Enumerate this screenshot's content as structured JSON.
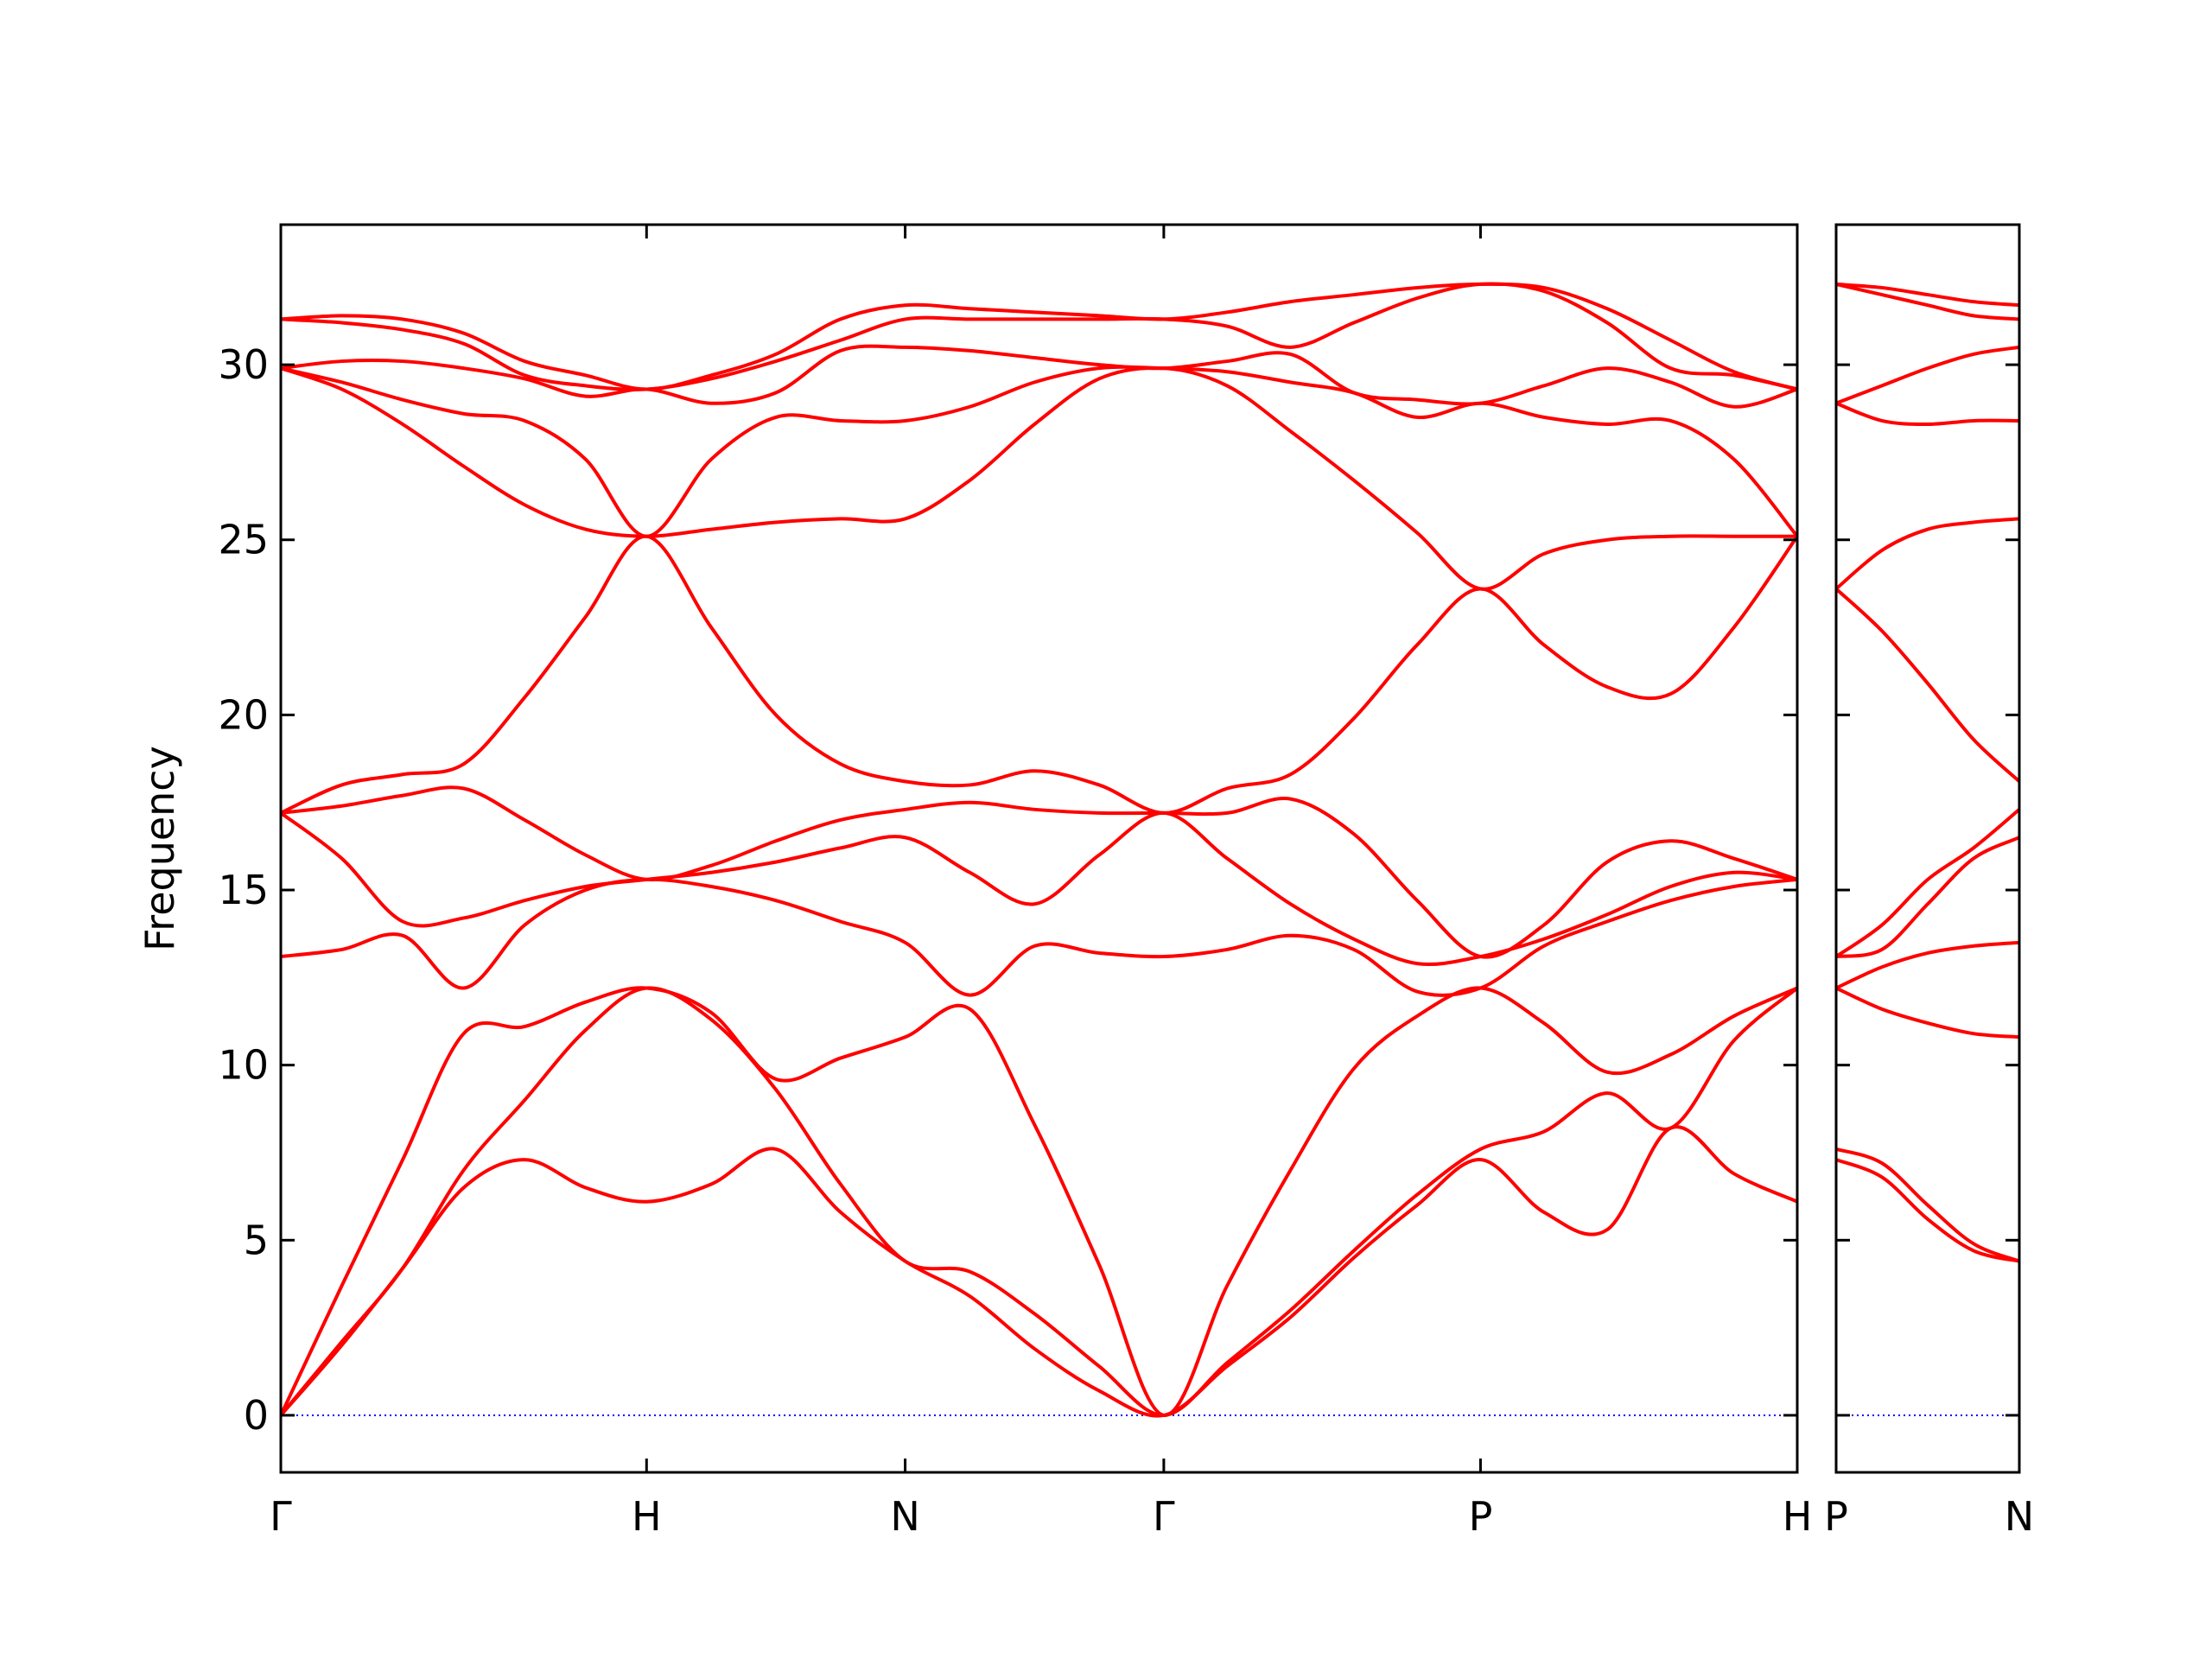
{
  "chart_data": [
    {
      "type": "line",
      "y_label": "Frequency",
      "x": [
        0,
        0.1667,
        0.3333,
        0.5,
        0.6667,
        0.8333,
        1.0,
        1.1768,
        1.3536,
        1.5303,
        1.7071,
        1.8839,
        2.0607,
        2.2374,
        2.4142,
        2.5874,
        2.7606,
        2.9338,
        3.107,
        3.2802,
        3.4534,
        3.6266,
        3.7998,
        3.973,
        4.1462
      ],
      "xlim": [
        0,
        4.1462
      ],
      "xticks": [
        {
          "value": 0,
          "label": "Γ"
        },
        {
          "value": 1.0,
          "label": "H"
        },
        {
          "value": 1.7071,
          "label": "N"
        },
        {
          "value": 2.4142,
          "label": "Γ"
        },
        {
          "value": 3.2802,
          "label": "P"
        },
        {
          "value": 4.1462,
          "label": "H"
        }
      ],
      "ylim": [
        -1.63,
        34.0
      ],
      "yticks": [
        0,
        5,
        10,
        15,
        20,
        25,
        30
      ],
      "show_ytick_labels": true,
      "reference_line": {
        "value": 0,
        "color": "#0000ff"
      },
      "series": [
        {
          "color": "#ff0000",
          "values": [
            0,
            2.0,
            4.2,
            6.5,
            7.3,
            6.5,
            6.1,
            6.6,
            7.6,
            5.8,
            4.4,
            3.4,
            1.9,
            0.7,
            0,
            1.4,
            2.8,
            4.5,
            6.0,
            7.3,
            5.8,
            5.3,
            8.2,
            6.9,
            6.1
          ]
        },
        {
          "color": "#ff0000",
          "values": [
            0,
            2.1,
            4.2,
            7.0,
            9.0,
            11.0,
            12.2,
            11.3,
            9.3,
            6.6,
            4.4,
            4.1,
            2.9,
            1.4,
            0,
            1.5,
            3.0,
            4.7,
            6.3,
            7.6,
            8.1,
            9.2,
            8.2,
            10.7,
            12.2
          ]
        },
        {
          "color": "#ff0000",
          "values": [
            0,
            3.7,
            7.3,
            10.9,
            11.1,
            11.8,
            12.2,
            11.5,
            9.6,
            10.2,
            10.8,
            11.6,
            8.3,
            4.3,
            0,
            3.7,
            7.0,
            9.9,
            11.4,
            12.2,
            11.2,
            9.8,
            10.3,
            11.4,
            12.2
          ]
        },
        {
          "color": "#ff0000",
          "values": [
            13.1,
            13.3,
            13.7,
            12.2,
            14.0,
            15.0,
            15.3,
            15.1,
            14.7,
            14.1,
            13.5,
            12.0,
            13.4,
            13.2,
            13.1,
            13.3,
            13.7,
            13.3,
            12.1,
            12.2,
            13.4,
            14.1,
            14.7,
            15.1,
            15.3
          ]
        },
        {
          "color": "#ff0000",
          "values": [
            17.2,
            15.9,
            14.1,
            14.2,
            14.7,
            15.1,
            15.3,
            15.5,
            15.8,
            16.2,
            16.5,
            15.5,
            14.6,
            16.0,
            17.2,
            15.9,
            14.6,
            13.6,
            12.9,
            13.1,
            13.6,
            14.3,
            15.1,
            15.5,
            15.3
          ]
        },
        {
          "color": "#ff0000",
          "values": [
            17.2,
            17.4,
            17.7,
            17.9,
            17.0,
            16.0,
            15.3,
            15.7,
            16.4,
            17.0,
            17.3,
            17.5,
            17.3,
            17.2,
            17.2,
            17.2,
            17.6,
            16.6,
            14.7,
            13.1,
            14.0,
            15.8,
            16.4,
            15.9,
            15.3
          ]
        },
        {
          "color": "#ff0000",
          "values": [
            17.2,
            18.0,
            18.3,
            18.6,
            20.5,
            22.8,
            25.1,
            22.5,
            20.0,
            18.6,
            18.1,
            18.0,
            18.4,
            18.0,
            17.2,
            17.9,
            18.3,
            19.9,
            22.0,
            23.6,
            22.0,
            20.8,
            20.6,
            22.5,
            25.1
          ]
        },
        {
          "color": "#ff0000",
          "values": [
            29.9,
            29.3,
            28.3,
            27.1,
            26.0,
            25.3,
            25.1,
            25.3,
            25.5,
            25.6,
            25.6,
            26.7,
            28.3,
            29.6,
            29.9,
            29.4,
            28.1,
            26.7,
            25.2,
            23.6,
            24.6,
            25.0,
            25.1,
            25.1,
            25.1
          ]
        },
        {
          "color": "#ff0000",
          "values": [
            29.9,
            29.5,
            29.0,
            28.6,
            28.4,
            27.3,
            25.1,
            27.3,
            28.5,
            28.4,
            28.4,
            28.8,
            29.5,
            29.9,
            29.9,
            29.8,
            29.5,
            29.2,
            28.5,
            28.9,
            28.5,
            28.3,
            28.4,
            27.3,
            25.1
          ]
        },
        {
          "color": "#ff0000",
          "values": [
            29.9,
            30.1,
            30.1,
            29.9,
            29.6,
            29.1,
            29.3,
            28.9,
            29.2,
            30.4,
            30.5,
            30.4,
            30.2,
            30.0,
            29.9,
            30.1,
            30.3,
            29.2,
            29.0,
            28.9,
            29.4,
            29.9,
            29.5,
            28.8,
            29.3
          ]
        },
        {
          "color": "#ff0000",
          "values": [
            31.3,
            31.2,
            31.0,
            30.6,
            29.7,
            29.4,
            29.3,
            29.6,
            30.1,
            30.7,
            31.3,
            31.3,
            31.3,
            31.3,
            31.3,
            31.1,
            30.5,
            31.2,
            31.9,
            32.3,
            32.1,
            31.2,
            29.9,
            29.7,
            29.3
          ]
        },
        {
          "color": "#ff0000",
          "values": [
            31.3,
            31.4,
            31.3,
            30.9,
            30.1,
            29.7,
            29.3,
            29.7,
            30.3,
            31.3,
            31.7,
            31.6,
            31.5,
            31.4,
            31.3,
            31.5,
            31.8,
            32.0,
            32.2,
            32.3,
            32.2,
            31.6,
            30.7,
            29.8,
            29.3
          ]
        }
      ]
    },
    {
      "type": "line",
      "x": [
        0,
        0.125,
        0.25,
        0.375,
        0.5
      ],
      "xlim": [
        0,
        0.5
      ],
      "xticks": [
        {
          "value": 0,
          "label": "P"
        },
        {
          "value": 0.5,
          "label": "N"
        }
      ],
      "ylim": [
        -1.63,
        34.0
      ],
      "yticks": [
        0,
        5,
        10,
        15,
        20,
        25,
        30
      ],
      "show_ytick_labels": false,
      "reference_line": {
        "value": 0,
        "color": "#0000ff"
      },
      "series": [
        {
          "color": "#ff0000",
          "values": [
            7.3,
            6.8,
            5.6,
            4.7,
            4.4
          ]
        },
        {
          "color": "#ff0000",
          "values": [
            7.6,
            7.2,
            6.0,
            4.9,
            4.4
          ]
        },
        {
          "color": "#ff0000",
          "values": [
            12.2,
            11.6,
            11.2,
            10.9,
            10.8
          ]
        },
        {
          "color": "#ff0000",
          "values": [
            12.2,
            12.8,
            13.2,
            13.4,
            13.5
          ]
        },
        {
          "color": "#ff0000",
          "values": [
            13.1,
            13.3,
            14.6,
            15.9,
            16.5
          ]
        },
        {
          "color": "#ff0000",
          "values": [
            13.1,
            14.0,
            15.3,
            16.2,
            17.3
          ]
        },
        {
          "color": "#ff0000",
          "values": [
            23.6,
            22.4,
            20.9,
            19.3,
            18.1
          ]
        },
        {
          "color": "#ff0000",
          "values": [
            23.6,
            24.7,
            25.3,
            25.5,
            25.6
          ]
        },
        {
          "color": "#ff0000",
          "values": [
            28.9,
            28.4,
            28.3,
            28.4,
            28.4
          ]
        },
        {
          "color": "#ff0000",
          "values": [
            28.9,
            29.4,
            29.9,
            30.3,
            30.5
          ]
        },
        {
          "color": "#ff0000",
          "values": [
            32.3,
            32.0,
            31.7,
            31.4,
            31.3
          ]
        },
        {
          "color": "#ff0000",
          "values": [
            32.3,
            32.2,
            32.0,
            31.8,
            31.7
          ]
        }
      ]
    }
  ]
}
